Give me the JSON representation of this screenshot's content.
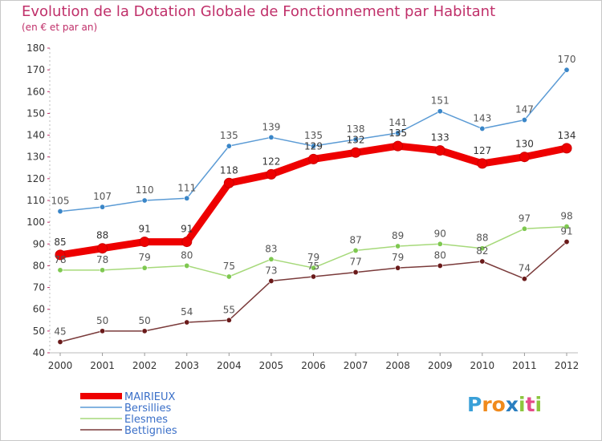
{
  "header": {
    "title": "Evolution de la Dotation Globale de Fonctionnement par Habitant",
    "subtitle": "(en € et par an)"
  },
  "logo": {
    "text": "Proxiti",
    "letters": [
      {
        "ch": "P",
        "color": "#3aa0d8"
      },
      {
        "ch": "r",
        "color": "#f08a1c"
      },
      {
        "ch": "o",
        "color": "#f08a1c"
      },
      {
        "ch": "x",
        "color": "#2a7ec0"
      },
      {
        "ch": "i",
        "color": "#8cc63e"
      },
      {
        "ch": "t",
        "color": "#e44b8a"
      },
      {
        "ch": "i",
        "color": "#8cc63e"
      }
    ]
  },
  "chart_data": {
    "type": "line",
    "title": "Evolution de la Dotation Globale de Fonctionnement par Habitant",
    "subtitle": "(en € et par an)",
    "x": [
      "2000",
      "2001",
      "2002",
      "2003",
      "2004",
      "2005",
      "2006",
      "2007",
      "2008",
      "2009",
      "2010",
      "2011",
      "2012"
    ],
    "ylim": [
      40,
      180
    ],
    "yticks": [
      40,
      50,
      60,
      70,
      80,
      90,
      100,
      110,
      120,
      130,
      140,
      150,
      160,
      170,
      180
    ],
    "grid": false,
    "legend_position": "bottom-left",
    "series": [
      {
        "name": "MAIRIEUX",
        "color": "#ee0000",
        "marker": "#ee0000",
        "label_color": "#333333",
        "emphasis": true,
        "values": [
          85,
          88,
          91,
          91,
          118,
          122,
          129,
          132,
          135,
          133,
          127,
          130,
          134
        ]
      },
      {
        "name": "Bersillies",
        "color": "#5b9bd5",
        "marker": "#3a86c8",
        "label_color": "#555555",
        "emphasis": false,
        "values": [
          105,
          107,
          110,
          111,
          135,
          139,
          135,
          138,
          141,
          151,
          143,
          147,
          170
        ]
      },
      {
        "name": "Elesmes",
        "color": "#a6d97a",
        "marker": "#7ec850",
        "label_color": "#555555",
        "emphasis": false,
        "values": [
          78,
          78,
          79,
          80,
          75,
          83,
          79,
          87,
          89,
          90,
          88,
          97,
          98
        ]
      },
      {
        "name": "Bettignies",
        "color": "#7a3a3a",
        "marker": "#6a1a1a",
        "label_color": "#555555",
        "emphasis": false,
        "values": [
          45,
          50,
          50,
          54,
          55,
          73,
          75,
          77,
          79,
          80,
          82,
          74,
          91
        ]
      }
    ]
  }
}
